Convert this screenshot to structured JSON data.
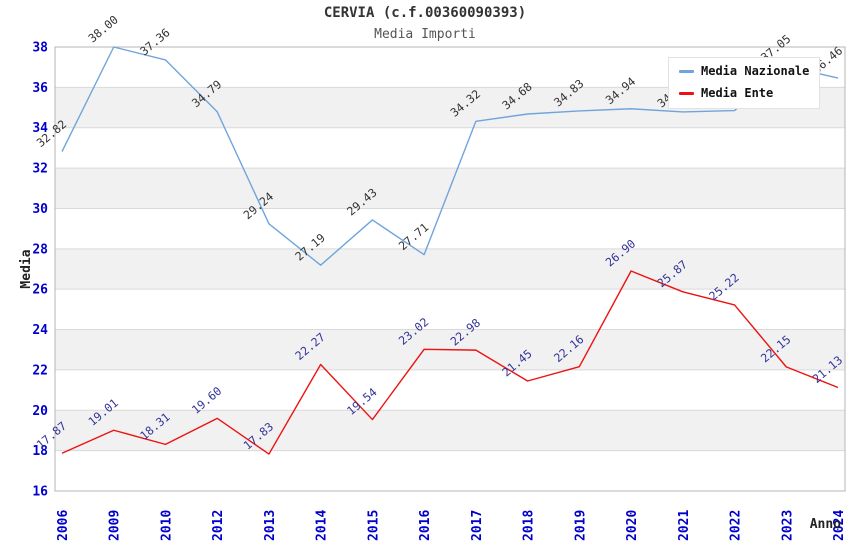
{
  "title": "CERVIA (c.f.00360090393)",
  "subtitle": "Media Importi",
  "legend": {
    "items": [
      {
        "label": "Media Nazionale",
        "color": "#6FA5DC"
      },
      {
        "label": "Media Ente",
        "color": "#EE1111"
      }
    ]
  },
  "axes": {
    "x_title": "Anno",
    "y_title": "Media"
  },
  "colors": {
    "band_fill": "#F1F1F1",
    "gridline": "#D9D9D9",
    "plot_border": "#B5B5B5",
    "tick_label": "#0000CC",
    "axis_title": "#222222",
    "title": "#333333",
    "subtitle": "#555555"
  },
  "chart_data": {
    "type": "line",
    "title": "CERVIA (c.f.00360090393)",
    "subtitle": "Media Importi",
    "xlabel": "Anno",
    "ylabel": "Media",
    "ylim": [
      16,
      38
    ],
    "y_ticks": [
      16,
      18,
      20,
      22,
      24,
      26,
      28,
      30,
      32,
      34,
      36,
      38
    ],
    "grid": "horizontal-bands",
    "legend_position": "top-right-overlay",
    "categories": [
      "2006",
      "2009",
      "2010",
      "2012",
      "2013",
      "2014",
      "2015",
      "2016",
      "2017",
      "2018",
      "2019",
      "2020",
      "2021",
      "2022",
      "2023",
      "2024"
    ],
    "series": [
      {
        "name": "Media Nazionale",
        "color": "#6FA5DC",
        "label_color": "#333333",
        "values": [
          32.82,
          38.0,
          37.36,
          34.79,
          29.24,
          27.19,
          29.43,
          27.71,
          34.32,
          34.68,
          34.83,
          34.94,
          34.78,
          34.85,
          37.05,
          36.46
        ],
        "point_labels": [
          "32.82",
          "38.00",
          "37.36",
          "34.79",
          "29.24",
          "27.19",
          "29.43",
          "27.71",
          "34.32",
          "34.68",
          "34.83",
          "34.94",
          "34.78",
          "34.85",
          "37.05",
          "36.46"
        ]
      },
      {
        "name": "Media Ente",
        "color": "#EE1111",
        "label_color": "#333399",
        "values": [
          17.87,
          19.01,
          18.31,
          19.6,
          17.83,
          22.27,
          19.54,
          23.02,
          22.98,
          21.45,
          22.16,
          26.9,
          25.87,
          25.22,
          22.15,
          21.13
        ],
        "point_labels": [
          "17.87",
          "19.01",
          "18.31",
          "19.60",
          "17.83",
          "22.27",
          "19.54",
          "23.02",
          "22.98",
          "21.45",
          "22.16",
          "26.90",
          "25.87",
          "25.22",
          "22.15",
          "21.13"
        ]
      }
    ]
  }
}
